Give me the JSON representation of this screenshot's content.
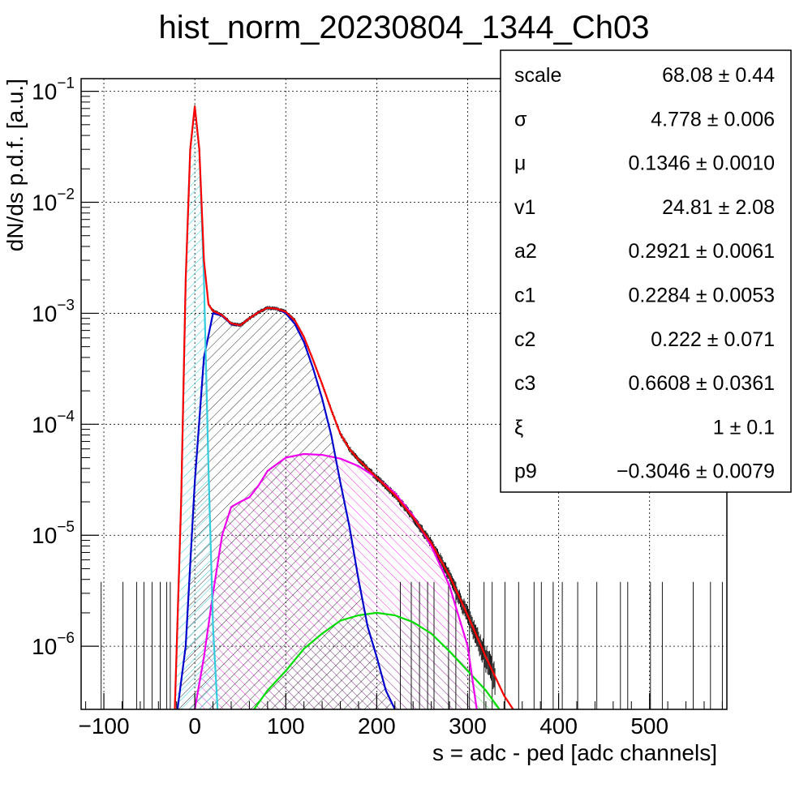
{
  "chart_data": {
    "type": "line",
    "title": "hist_norm_20230804_1344_Ch03",
    "xlabel": "s = adc - ped [adc channels]",
    "ylabel": "dN/ds p.d.f. [a.u.]",
    "xlim": [
      -125,
      585
    ],
    "ylim": [
      2.7e-07,
      0.13
    ],
    "y_scale": "log",
    "grid": true,
    "x_ticks": [
      -100,
      0,
      100,
      200,
      300,
      400,
      500
    ],
    "x_tick_labels": [
      "−100",
      "0",
      "100",
      "200",
      "300",
      "400",
      "500"
    ],
    "y_ticks": [
      {
        "value": 1e-06,
        "base": "10",
        "exp": "−6"
      },
      {
        "value": 1e-05,
        "base": "10",
        "exp": "−5"
      },
      {
        "value": 0.0001,
        "base": "10",
        "exp": "−4"
      },
      {
        "value": 0.001,
        "base": "10",
        "exp": "−3"
      },
      {
        "value": 0.01,
        "base": "10",
        "exp": "−2"
      },
      {
        "value": 0.1,
        "base": "10",
        "exp": "−1"
      }
    ],
    "colors": {
      "histogram": "#000000",
      "total_fit": "#ff0000",
      "pedestal": "#33ccdd",
      "one_pe": "#0000cc",
      "two_pe": "#ee00ee",
      "three_pe": "#00dd00"
    },
    "series": [
      {
        "key": "pedestal",
        "x": [
          -22,
          -15,
          -10,
          -5,
          0,
          5,
          10,
          15,
          20,
          25
        ],
        "y": [
          2.7e-07,
          2e-05,
          0.002,
          0.03,
          0.073,
          0.03,
          0.002,
          4e-05,
          1.5e-06,
          2.7e-07
        ]
      },
      {
        "key": "one_pe",
        "x": [
          -19,
          -10,
          0,
          10,
          20,
          30,
          40,
          50,
          60,
          70,
          80,
          90,
          100,
          110,
          120,
          130,
          140,
          150,
          160,
          170,
          180,
          190,
          200,
          210,
          220
        ],
        "y": [
          2.7e-07,
          1e-06,
          3e-05,
          0.0004,
          0.001,
          0.00095,
          0.0008,
          0.00078,
          0.0009,
          0.00102,
          0.00112,
          0.0011,
          0.001,
          0.0008,
          0.00055,
          0.00032,
          0.00017,
          8e-05,
          3e-05,
          1.2e-05,
          4e-06,
          1.5e-06,
          8e-07,
          4e-07,
          2.7e-07
        ]
      },
      {
        "key": "two_pe",
        "x": [
          0,
          10,
          20,
          30,
          40,
          50,
          60,
          70,
          80,
          100,
          120,
          140,
          160,
          180,
          200,
          220,
          240,
          260,
          280,
          300,
          310
        ],
        "y": [
          2.7e-07,
          8e-07,
          3e-06,
          1e-05,
          1.8e-05,
          2e-05,
          2.2e-05,
          2.8e-05,
          3.8e-05,
          5e-05,
          5.4e-05,
          5.3e-05,
          4.9e-05,
          4.2e-05,
          3.3e-05,
          2.4e-05,
          1.5e-05,
          8e-06,
          3.5e-06,
          1e-06,
          2.7e-07
        ]
      },
      {
        "key": "three_pe",
        "x": [
          65,
          80,
          100,
          120,
          140,
          160,
          180,
          200,
          220,
          240,
          260,
          280,
          300,
          320,
          335
        ],
        "y": [
          2.7e-07,
          4e-07,
          6e-07,
          9.5e-07,
          1.3e-06,
          1.7e-06,
          1.9e-06,
          2e-06,
          1.9e-06,
          1.65e-06,
          1.3e-06,
          9e-07,
          6e-07,
          4e-07,
          2.7e-07
        ]
      },
      {
        "key": "total_fit",
        "x": [
          -22,
          -15,
          -10,
          -5,
          0,
          5,
          10,
          15,
          20,
          30,
          40,
          50,
          60,
          70,
          80,
          90,
          100,
          110,
          120,
          130,
          140,
          150,
          160,
          170,
          180,
          200,
          220,
          240,
          260,
          280,
          300,
          320,
          340,
          350
        ],
        "y": [
          2.7e-07,
          2e-05,
          0.002,
          0.03,
          0.073,
          0.03,
          0.003,
          0.0012,
          0.00105,
          0.00096,
          0.00081,
          0.00078,
          0.0009,
          0.00102,
          0.00112,
          0.0011,
          0.00103,
          0.00086,
          0.00061,
          0.00038,
          0.00023,
          0.000135,
          8.2e-05,
          6e-05,
          4.8e-05,
          3.3e-05,
          2.3e-05,
          1.45e-05,
          8.5e-06,
          4.3e-06,
          1.9e-06,
          8e-07,
          3.6e-07,
          2.7e-07
        ]
      }
    ],
    "stats": [
      {
        "name": "scale",
        "value": "68.08 ± 0.44"
      },
      {
        "name": "σ",
        "value": "4.778 ± 0.006"
      },
      {
        "name": "μ",
        "value": "0.1346 ± 0.0010"
      },
      {
        "name": "v1",
        "value": "24.81 ± 2.08"
      },
      {
        "name": "a2",
        "value": "0.2921 ± 0.0061"
      },
      {
        "name": "c1",
        "value": "0.2284 ± 0.0053"
      },
      {
        "name": "c2",
        "value": "0.222 ± 0.071"
      },
      {
        "name": "c3",
        "value": "0.6608 ± 0.0361"
      },
      {
        "name": "ξ",
        "value": "1 ± 0.1"
      },
      {
        "name": "p9",
        "value": "−0.3046 ± 0.0079"
      }
    ]
  }
}
